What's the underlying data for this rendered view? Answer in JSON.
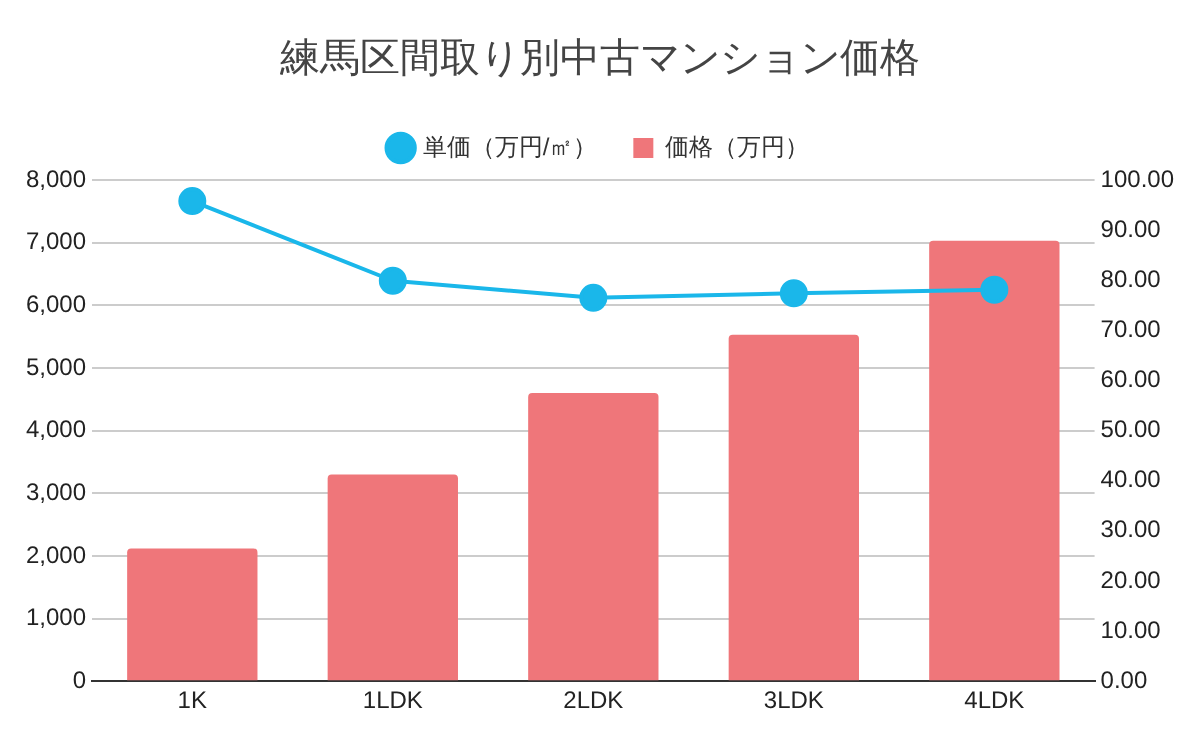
{
  "chart_data": {
    "type": "bar",
    "title": "練馬区間取り別中古マンション価格",
    "categories": [
      "1K",
      "1LDK",
      "2LDK",
      "3LDK",
      "4LDK"
    ],
    "series": [
      {
        "name": "価格（万円）",
        "color": "#ef767a",
        "values": [
          2120,
          3300,
          4600,
          5530,
          7030
        ]
      },
      {
        "name": "単価（万円/㎡）",
        "type": "line",
        "axis": "y2",
        "color": "#1ab7ea",
        "values": [
          95.8,
          79.9,
          76.5,
          77.4,
          78.1
        ]
      }
    ],
    "ylim": [
      0,
      8000
    ],
    "yticks": [
      {
        "value": 0,
        "label": "0"
      },
      {
        "value": 1000,
        "label": "1,000"
      },
      {
        "value": 2000,
        "label": "2,000"
      },
      {
        "value": 3000,
        "label": "3,000"
      },
      {
        "value": 4000,
        "label": "4,000"
      },
      {
        "value": 5000,
        "label": "5,000"
      },
      {
        "value": 6000,
        "label": "6,000"
      },
      {
        "value": 7000,
        "label": "7,000"
      },
      {
        "value": 8000,
        "label": "8,000"
      }
    ],
    "y2lim": [
      0,
      100
    ],
    "y2ticks": [
      {
        "value": 0,
        "label": "0.00"
      },
      {
        "value": 10,
        "label": "10.00"
      },
      {
        "value": 20,
        "label": "20.00"
      },
      {
        "value": 30,
        "label": "30.00"
      },
      {
        "value": 40,
        "label": "40.00"
      },
      {
        "value": 50,
        "label": "50.00"
      },
      {
        "value": 60,
        "label": "60.00"
      },
      {
        "value": 70,
        "label": "70.00"
      },
      {
        "value": 80,
        "label": "80.00"
      },
      {
        "value": 90,
        "label": "90.00"
      },
      {
        "value": 100,
        "label": "100.00"
      }
    ],
    "grid": "y",
    "legend": "top",
    "marker": "circle",
    "line_style": "solid"
  }
}
